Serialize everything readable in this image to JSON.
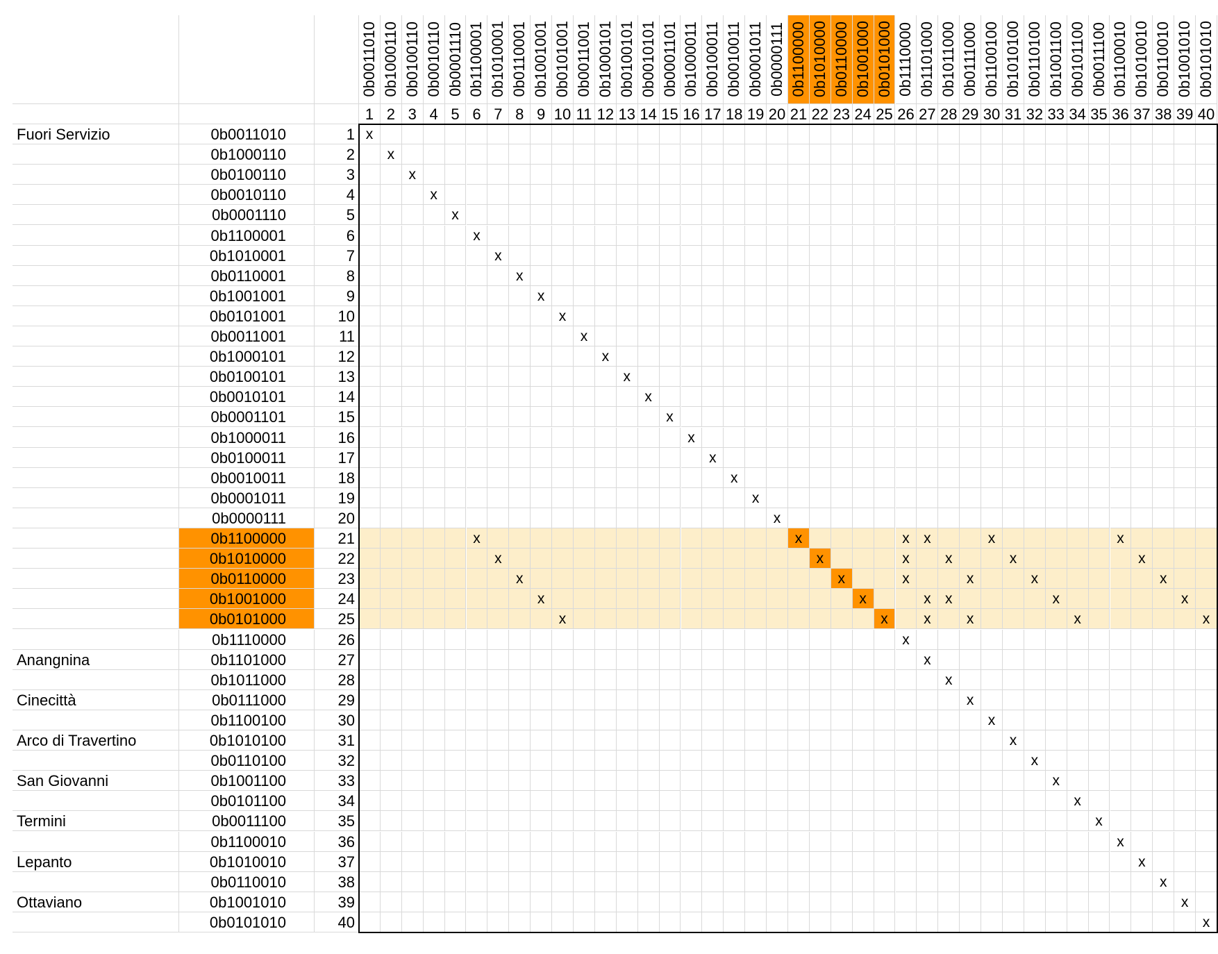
{
  "colors": {
    "highlight_strong": "#ff9200",
    "highlight_light": "#fdeeca",
    "grid": "#d9d9d9",
    "frame": "#000000"
  },
  "mark_symbol": "x",
  "highlight": {
    "rows": [
      21,
      22,
      23,
      24,
      25
    ],
    "columns": [
      21,
      22,
      23,
      24,
      25
    ]
  },
  "column_codes": [
    "0b0011010",
    "0b1000110",
    "0b0100110",
    "0b0010110",
    "0b0001110",
    "0b1100001",
    "0b1010001",
    "0b0110001",
    "0b1001001",
    "0b0101001",
    "0b0011001",
    "0b1000101",
    "0b0100101",
    "0b0010101",
    "0b0001101",
    "0b1000011",
    "0b0100011",
    "0b0010011",
    "0b0001011",
    "0b0000111",
    "0b1100000",
    "0b1010000",
    "0b0110000",
    "0b1001000",
    "0b0101000",
    "0b1110000",
    "0b1101000",
    "0b1011000",
    "0b0111000",
    "0b1100100",
    "0b1010100",
    "0b0110100",
    "0b1001100",
    "0b0101100",
    "0b0011100",
    "0b1100010",
    "0b1010010",
    "0b0110010",
    "0b1001010",
    "0b0101010"
  ],
  "column_numbers": [
    "1",
    "2",
    "3",
    "4",
    "5",
    "6",
    "7",
    "8",
    "9",
    "10",
    "11",
    "12",
    "13",
    "14",
    "15",
    "16",
    "17",
    "18",
    "19",
    "20",
    "21",
    "22",
    "23",
    "24",
    "25",
    "26",
    "27",
    "28",
    "29",
    "30",
    "31",
    "32",
    "33",
    "34",
    "35",
    "36",
    "37",
    "38",
    "39",
    "40"
  ],
  "rows": [
    {
      "name": "Fuori Servizio",
      "code": "0b0011010",
      "num": "1",
      "marks": [
        1
      ]
    },
    {
      "name": "",
      "code": "0b1000110",
      "num": "2",
      "marks": [
        2
      ]
    },
    {
      "name": "",
      "code": "0b0100110",
      "num": "3",
      "marks": [
        3
      ]
    },
    {
      "name": "",
      "code": "0b0010110",
      "num": "4",
      "marks": [
        4
      ]
    },
    {
      "name": "",
      "code": "0b0001110",
      "num": "5",
      "marks": [
        5
      ]
    },
    {
      "name": "",
      "code": "0b1100001",
      "num": "6",
      "marks": [
        6
      ]
    },
    {
      "name": "",
      "code": "0b1010001",
      "num": "7",
      "marks": [
        7
      ]
    },
    {
      "name": "",
      "code": "0b0110001",
      "num": "8",
      "marks": [
        8
      ]
    },
    {
      "name": "",
      "code": "0b1001001",
      "num": "9",
      "marks": [
        9
      ]
    },
    {
      "name": "",
      "code": "0b0101001",
      "num": "10",
      "marks": [
        10
      ]
    },
    {
      "name": "",
      "code": "0b0011001",
      "num": "11",
      "marks": [
        11
      ]
    },
    {
      "name": "",
      "code": "0b1000101",
      "num": "12",
      "marks": [
        12
      ]
    },
    {
      "name": "",
      "code": "0b0100101",
      "num": "13",
      "marks": [
        13
      ]
    },
    {
      "name": "",
      "code": "0b0010101",
      "num": "14",
      "marks": [
        14
      ]
    },
    {
      "name": "",
      "code": "0b0001101",
      "num": "15",
      "marks": [
        15
      ]
    },
    {
      "name": "",
      "code": "0b1000011",
      "num": "16",
      "marks": [
        16
      ]
    },
    {
      "name": "",
      "code": "0b0100011",
      "num": "17",
      "marks": [
        17
      ]
    },
    {
      "name": "",
      "code": "0b0010011",
      "num": "18",
      "marks": [
        18
      ]
    },
    {
      "name": "",
      "code": "0b0001011",
      "num": "19",
      "marks": [
        19
      ]
    },
    {
      "name": "",
      "code": "0b0000111",
      "num": "20",
      "marks": [
        20
      ]
    },
    {
      "name": "",
      "code": "0b1100000",
      "num": "21",
      "marks": [
        6,
        21,
        26,
        27,
        30,
        36
      ]
    },
    {
      "name": "",
      "code": "0b1010000",
      "num": "22",
      "marks": [
        7,
        22,
        26,
        28,
        31,
        37
      ]
    },
    {
      "name": "",
      "code": "0b0110000",
      "num": "23",
      "marks": [
        8,
        23,
        26,
        29,
        32,
        38
      ]
    },
    {
      "name": "",
      "code": "0b1001000",
      "num": "24",
      "marks": [
        9,
        24,
        27,
        28,
        33,
        39
      ]
    },
    {
      "name": "",
      "code": "0b0101000",
      "num": "25",
      "marks": [
        10,
        25,
        27,
        29,
        34,
        40
      ]
    },
    {
      "name": "",
      "code": "0b1110000",
      "num": "26",
      "marks": [
        26
      ]
    },
    {
      "name": "Anangnina",
      "code": "0b1101000",
      "num": "27",
      "marks": [
        27
      ]
    },
    {
      "name": "",
      "code": "0b1011000",
      "num": "28",
      "marks": [
        28
      ]
    },
    {
      "name": "Cinecittà",
      "code": "0b0111000",
      "num": "29",
      "marks": [
        29
      ]
    },
    {
      "name": "",
      "code": "0b1100100",
      "num": "30",
      "marks": [
        30
      ]
    },
    {
      "name": "Arco di Travertino",
      "code": "0b1010100",
      "num": "31",
      "marks": [
        31
      ]
    },
    {
      "name": "",
      "code": "0b0110100",
      "num": "32",
      "marks": [
        32
      ]
    },
    {
      "name": "San Giovanni",
      "code": "0b1001100",
      "num": "33",
      "marks": [
        33
      ]
    },
    {
      "name": "",
      "code": "0b0101100",
      "num": "34",
      "marks": [
        34
      ]
    },
    {
      "name": "Termini",
      "code": "0b0011100",
      "num": "35",
      "marks": [
        35
      ]
    },
    {
      "name": "",
      "code": "0b1100010",
      "num": "36",
      "marks": [
        36
      ]
    },
    {
      "name": "Lepanto",
      "code": "0b1010010",
      "num": "37",
      "marks": [
        37
      ]
    },
    {
      "name": "",
      "code": "0b0110010",
      "num": "38",
      "marks": [
        38
      ]
    },
    {
      "name": "Ottaviano",
      "code": "0b1001010",
      "num": "39",
      "marks": [
        39
      ]
    },
    {
      "name": "",
      "code": "0b0101010",
      "num": "40",
      "marks": [
        40
      ]
    }
  ]
}
